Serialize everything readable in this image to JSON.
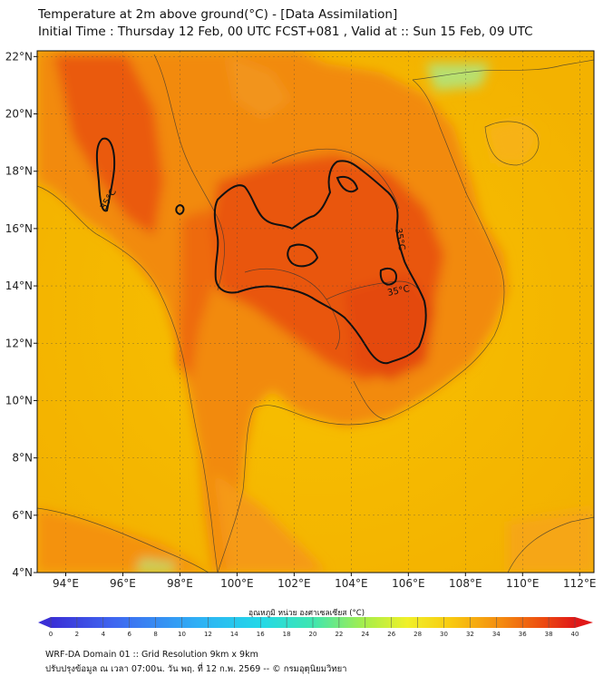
{
  "header": {
    "title_line1": "Temperature at 2m above ground(°C) - [Data Assimilation]",
    "title_line2": "Initial Time : Thursday 12 Feb, 00 UTC FCST+081 , Valid at :: Sun 15 Feb, 09 UTC"
  },
  "map": {
    "lon_range": [
      93,
      112.5
    ],
    "lat_range": [
      4,
      22.2
    ],
    "lon_ticks": [
      "94°E",
      "96°E",
      "98°E",
      "100°E",
      "102°E",
      "104°E",
      "106°E",
      "108°E",
      "110°E",
      "112°E"
    ],
    "lat_ticks": [
      "4°N",
      "6°N",
      "8°N",
      "10°N",
      "12°N",
      "14°N",
      "16°N",
      "18°N",
      "20°N",
      "22°N"
    ],
    "contour_labels": [
      "35°C",
      "35°C",
      "35°C"
    ],
    "colors": {
      "sea": "#f6b900",
      "land_hot": "#ec5f10",
      "land_very_hot": "#e0420a",
      "contour": "#111111"
    }
  },
  "colorbar": {
    "label": "อุณหภูมิ หน่วย องศาเซลเซียส (°C)",
    "min": 0,
    "max": 40,
    "tick_labels": [
      "0",
      "2",
      "4",
      "6",
      "8",
      "10",
      "12",
      "14",
      "16",
      "18",
      "20",
      "22",
      "24",
      "26",
      "28",
      "30",
      "32",
      "34",
      "36",
      "38",
      "40"
    ]
  },
  "footer": {
    "line1": "WRF-DA Domain 01 :: Grid Resolution 9km x 9km",
    "line2": "ปรับปรุงข้อมูล ณ เวลา 07:00น. วัน พฤ. ที่ 12 ก.พ. 2569 -- © กรมอุตุนิยมวิทยา"
  }
}
